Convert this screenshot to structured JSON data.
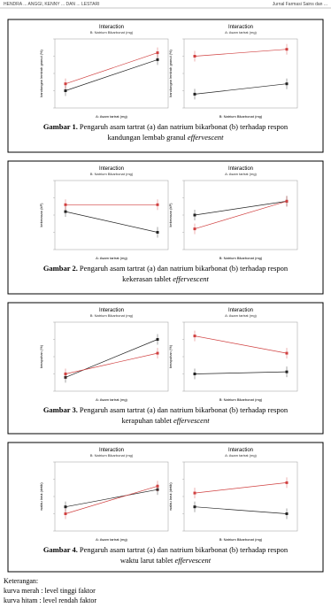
{
  "header": {
    "left": "HENDRA ... ANGGI, KENNY ... DAN ... LESTARI",
    "right": "Jurnal Farmasi Sains dan ..."
  },
  "figures": [
    {
      "label": "Gambar 1.",
      "caption": "Pengaruh asam tartrat (a) dan natrium bikarbonat (b) terhadap respon",
      "caption2": "kandungan lembab granul ",
      "italic": "effervescent",
      "plots": [
        {
          "title": "Interaction",
          "legend": "B: Natrium Bikarbonat (mg)",
          "xlabel": "A: Asam tartrat (mg)",
          "ylabel": "kandungan lembab granul (%)"
        },
        {
          "title": "Interaction",
          "legend": "A: Asam tartrat (mg)",
          "xlabel": "B: Natrium Bikarbonat (mg)",
          "ylabel": "kandungan lembab granul (%)"
        }
      ]
    },
    {
      "label": "Gambar 2.",
      "caption": "Pengaruh asam tartrat (a) dan natrium bikarbonat (b) terhadap respon",
      "caption2": "kekerasan tablet ",
      "italic": "effervescent",
      "plots": [
        {
          "title": "Interaction",
          "legend": "B: Natrium Bikarbonat (mg)",
          "xlabel": "A: Asam tartrat (mg)",
          "ylabel": "kekerasan (kP)"
        },
        {
          "title": "Interaction",
          "legend": "A: Asam tartrat (mg)",
          "xlabel": "B: Natrium Bikarbonat (mg)",
          "ylabel": "kekerasan (kP)"
        }
      ]
    },
    {
      "label": "Gambar 3.",
      "caption": "Pengaruh asam tartrat (a) dan natrium bikarbonat (b) terhadap respon",
      "caption2": "kerapuhan tablet ",
      "italic": "effervescent",
      "plots": [
        {
          "title": "Interaction",
          "legend": "B: Natrium Bikarbonat (mg)",
          "xlabel": "A: Asam tartrat (mg)",
          "ylabel": "kerapuhan (%)"
        },
        {
          "title": "Interaction",
          "legend": "A: Asam tartrat (mg)",
          "xlabel": "B: Natrium Bikarbonat (mg)",
          "ylabel": "kerapuhan (%)"
        }
      ]
    },
    {
      "label": "Gambar 4.",
      "caption": "Pengaruh asam tartrat (a) dan natrium bikarbonat (b) terhadap respon",
      "caption2": "waktu larut tablet ",
      "italic": "effervescent",
      "plots": [
        {
          "title": "Interaction",
          "legend": "B: Natrium Bikarbonat (mg)",
          "xlabel": "A: Asam tartrat (mg)",
          "ylabel": "waktu larut (detik)"
        },
        {
          "title": "Interaction",
          "legend": "A: Asam tartrat (mg)",
          "xlabel": "B: Natrium Bikarbonat (mg)",
          "ylabel": "waktu larut (detik)"
        }
      ]
    }
  ],
  "notes": {
    "title": "Keterangan:",
    "items": [
      "kurva merah : level tinggi faktor",
      "kurva hitam : level rendah faktor"
    ]
  }
}
